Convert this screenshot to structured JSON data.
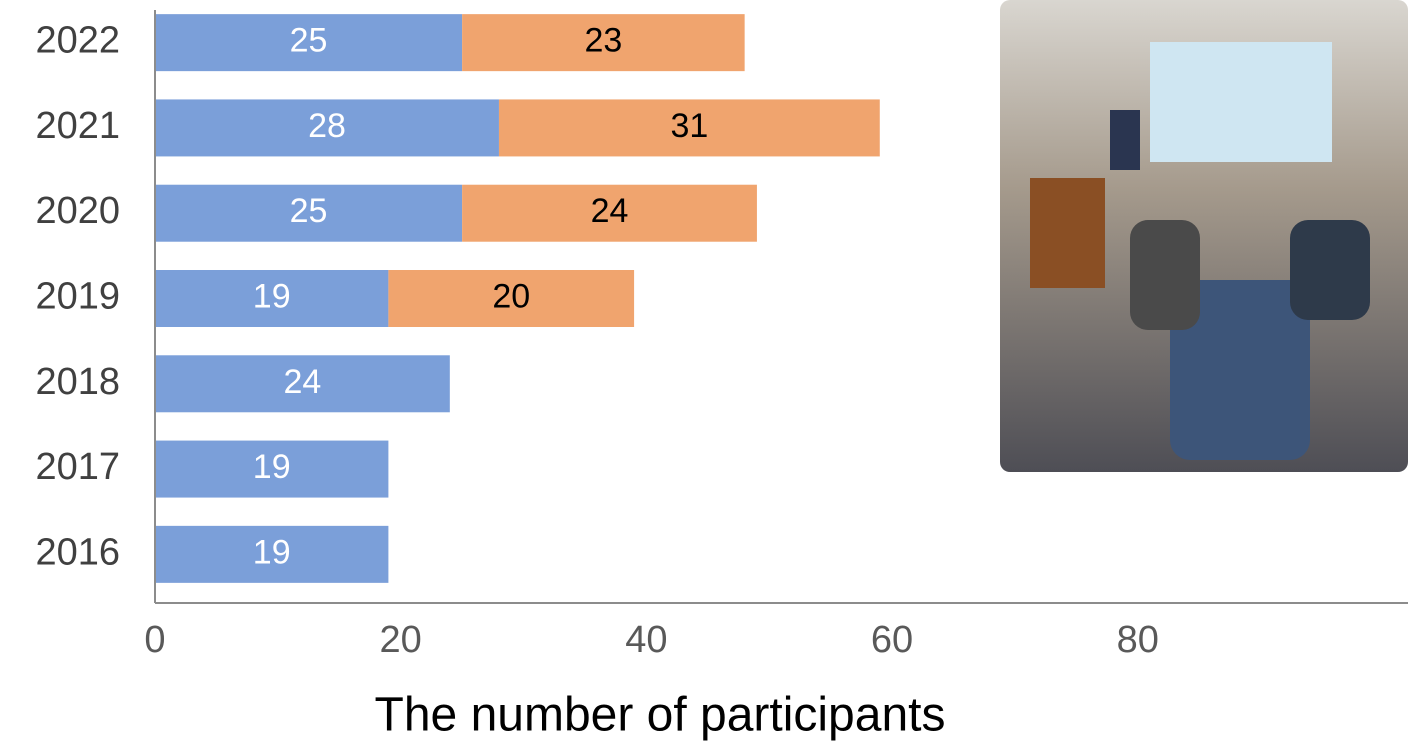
{
  "chart_data": {
    "type": "stacked-bar-horizontal",
    "x_label": "The number of participants",
    "categories": [
      "2016",
      "2017",
      "2018",
      "2019",
      "2020",
      "2021",
      "2022"
    ],
    "series": [
      {
        "color": "#7b9fd9",
        "values": [
          19,
          19,
          24,
          19,
          25,
          28,
          25
        ]
      },
      {
        "color": "#f0a46e",
        "values": [
          null,
          null,
          null,
          20,
          24,
          31,
          23
        ]
      }
    ],
    "xlim": [
      0,
      102
    ],
    "xticks": [
      0,
      20,
      40,
      60,
      80
    ],
    "grid": false
  }
}
